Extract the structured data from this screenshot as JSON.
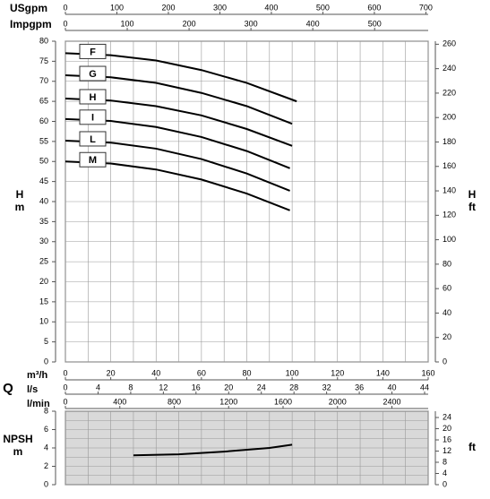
{
  "chart_data": [
    {
      "type": "line",
      "xlabel": "Q",
      "ylabel": [
        "H",
        "m"
      ],
      "y2label": [
        "H",
        "ft"
      ],
      "xlim": [
        0,
        160
      ],
      "xgrid_step": 10,
      "ylim": [
        0,
        80
      ],
      "yticks": [
        0,
        5,
        10,
        15,
        20,
        25,
        30,
        35,
        40,
        45,
        50,
        55,
        60,
        65,
        70,
        75,
        80
      ],
      "y2lim": [
        0,
        262.47
      ],
      "y2ticks": [
        0,
        20,
        40,
        60,
        80,
        100,
        120,
        140,
        160,
        180,
        200,
        220,
        240,
        260
      ],
      "grid": true,
      "x_axes": [
        {
          "position": "top",
          "label": "USgpm",
          "xlim": [
            0,
            704.5
          ],
          "xticks": [
            0,
            100,
            200,
            300,
            400,
            500,
            600,
            700
          ]
        },
        {
          "position": "top",
          "label": "Impgpm",
          "xlim": [
            0,
            586.6
          ],
          "xticks": [
            0,
            100,
            200,
            300,
            400,
            500
          ]
        },
        {
          "position": "bottom",
          "label": "m³/h",
          "xlim": [
            0,
            160
          ],
          "xticks": [
            0,
            20,
            40,
            60,
            80,
            100,
            120,
            140,
            160
          ]
        },
        {
          "position": "bottom",
          "label": "l/s",
          "xlim": [
            0,
            44.44
          ],
          "xticks": [
            0,
            4,
            8,
            12,
            16,
            20,
            24,
            28,
            32,
            36,
            40,
            44
          ]
        },
        {
          "position": "bottom",
          "label": "l/min",
          "xlim": [
            0,
            2666.7
          ],
          "xticks": [
            0,
            400,
            800,
            1200,
            1600,
            2000,
            2400
          ]
        }
      ],
      "series": [
        {
          "name": "F",
          "color": "#000000",
          "x": [
            0,
            20,
            40,
            60,
            80,
            102
          ],
          "values": [
            77,
            76.5,
            75.2,
            72.8,
            69.6,
            65
          ]
        },
        {
          "name": "G",
          "color": "#000000",
          "x": [
            0,
            20,
            40,
            60,
            80,
            100
          ],
          "values": [
            71.5,
            71.0,
            69.6,
            67.1,
            63.8,
            59.4
          ]
        },
        {
          "name": "H",
          "color": "#000000",
          "x": [
            0,
            20,
            40,
            60,
            80,
            100
          ],
          "values": [
            65.7,
            65.2,
            63.8,
            61.5,
            58.1,
            53.9
          ]
        },
        {
          "name": "I",
          "color": "#000000",
          "x": [
            0,
            20,
            40,
            60,
            80,
            99
          ],
          "values": [
            60.6,
            60.1,
            58.6,
            56.1,
            52.6,
            48.3
          ]
        },
        {
          "name": "L",
          "color": "#000000",
          "x": [
            0,
            20,
            40,
            60,
            80,
            99
          ],
          "values": [
            55.2,
            54.7,
            53.2,
            50.6,
            47.0,
            42.7
          ]
        },
        {
          "name": "M",
          "color": "#000000",
          "x": [
            0,
            20,
            40,
            60,
            80,
            99
          ],
          "values": [
            50.0,
            49.5,
            48.0,
            45.5,
            42.0,
            37.8
          ]
        }
      ]
    },
    {
      "type": "line",
      "ylabel": [
        "NPSH",
        "m"
      ],
      "y2label": [
        "ft"
      ],
      "background": "#d9d9d9",
      "xlim": [
        0,
        160
      ],
      "xgrid_step": 10,
      "ylim": [
        0,
        8
      ],
      "yticks": [
        0,
        2,
        4,
        6,
        8
      ],
      "ygrid_step": 1,
      "y2lim": [
        0,
        26.25
      ],
      "y2ticks": [
        0,
        4,
        8,
        12,
        16,
        20,
        24
      ],
      "grid": true,
      "series": [
        {
          "color": "#000000",
          "x": [
            30,
            50,
            70,
            90,
            100
          ],
          "values": [
            3.2,
            3.3,
            3.6,
            4.0,
            4.35
          ]
        }
      ]
    }
  ]
}
